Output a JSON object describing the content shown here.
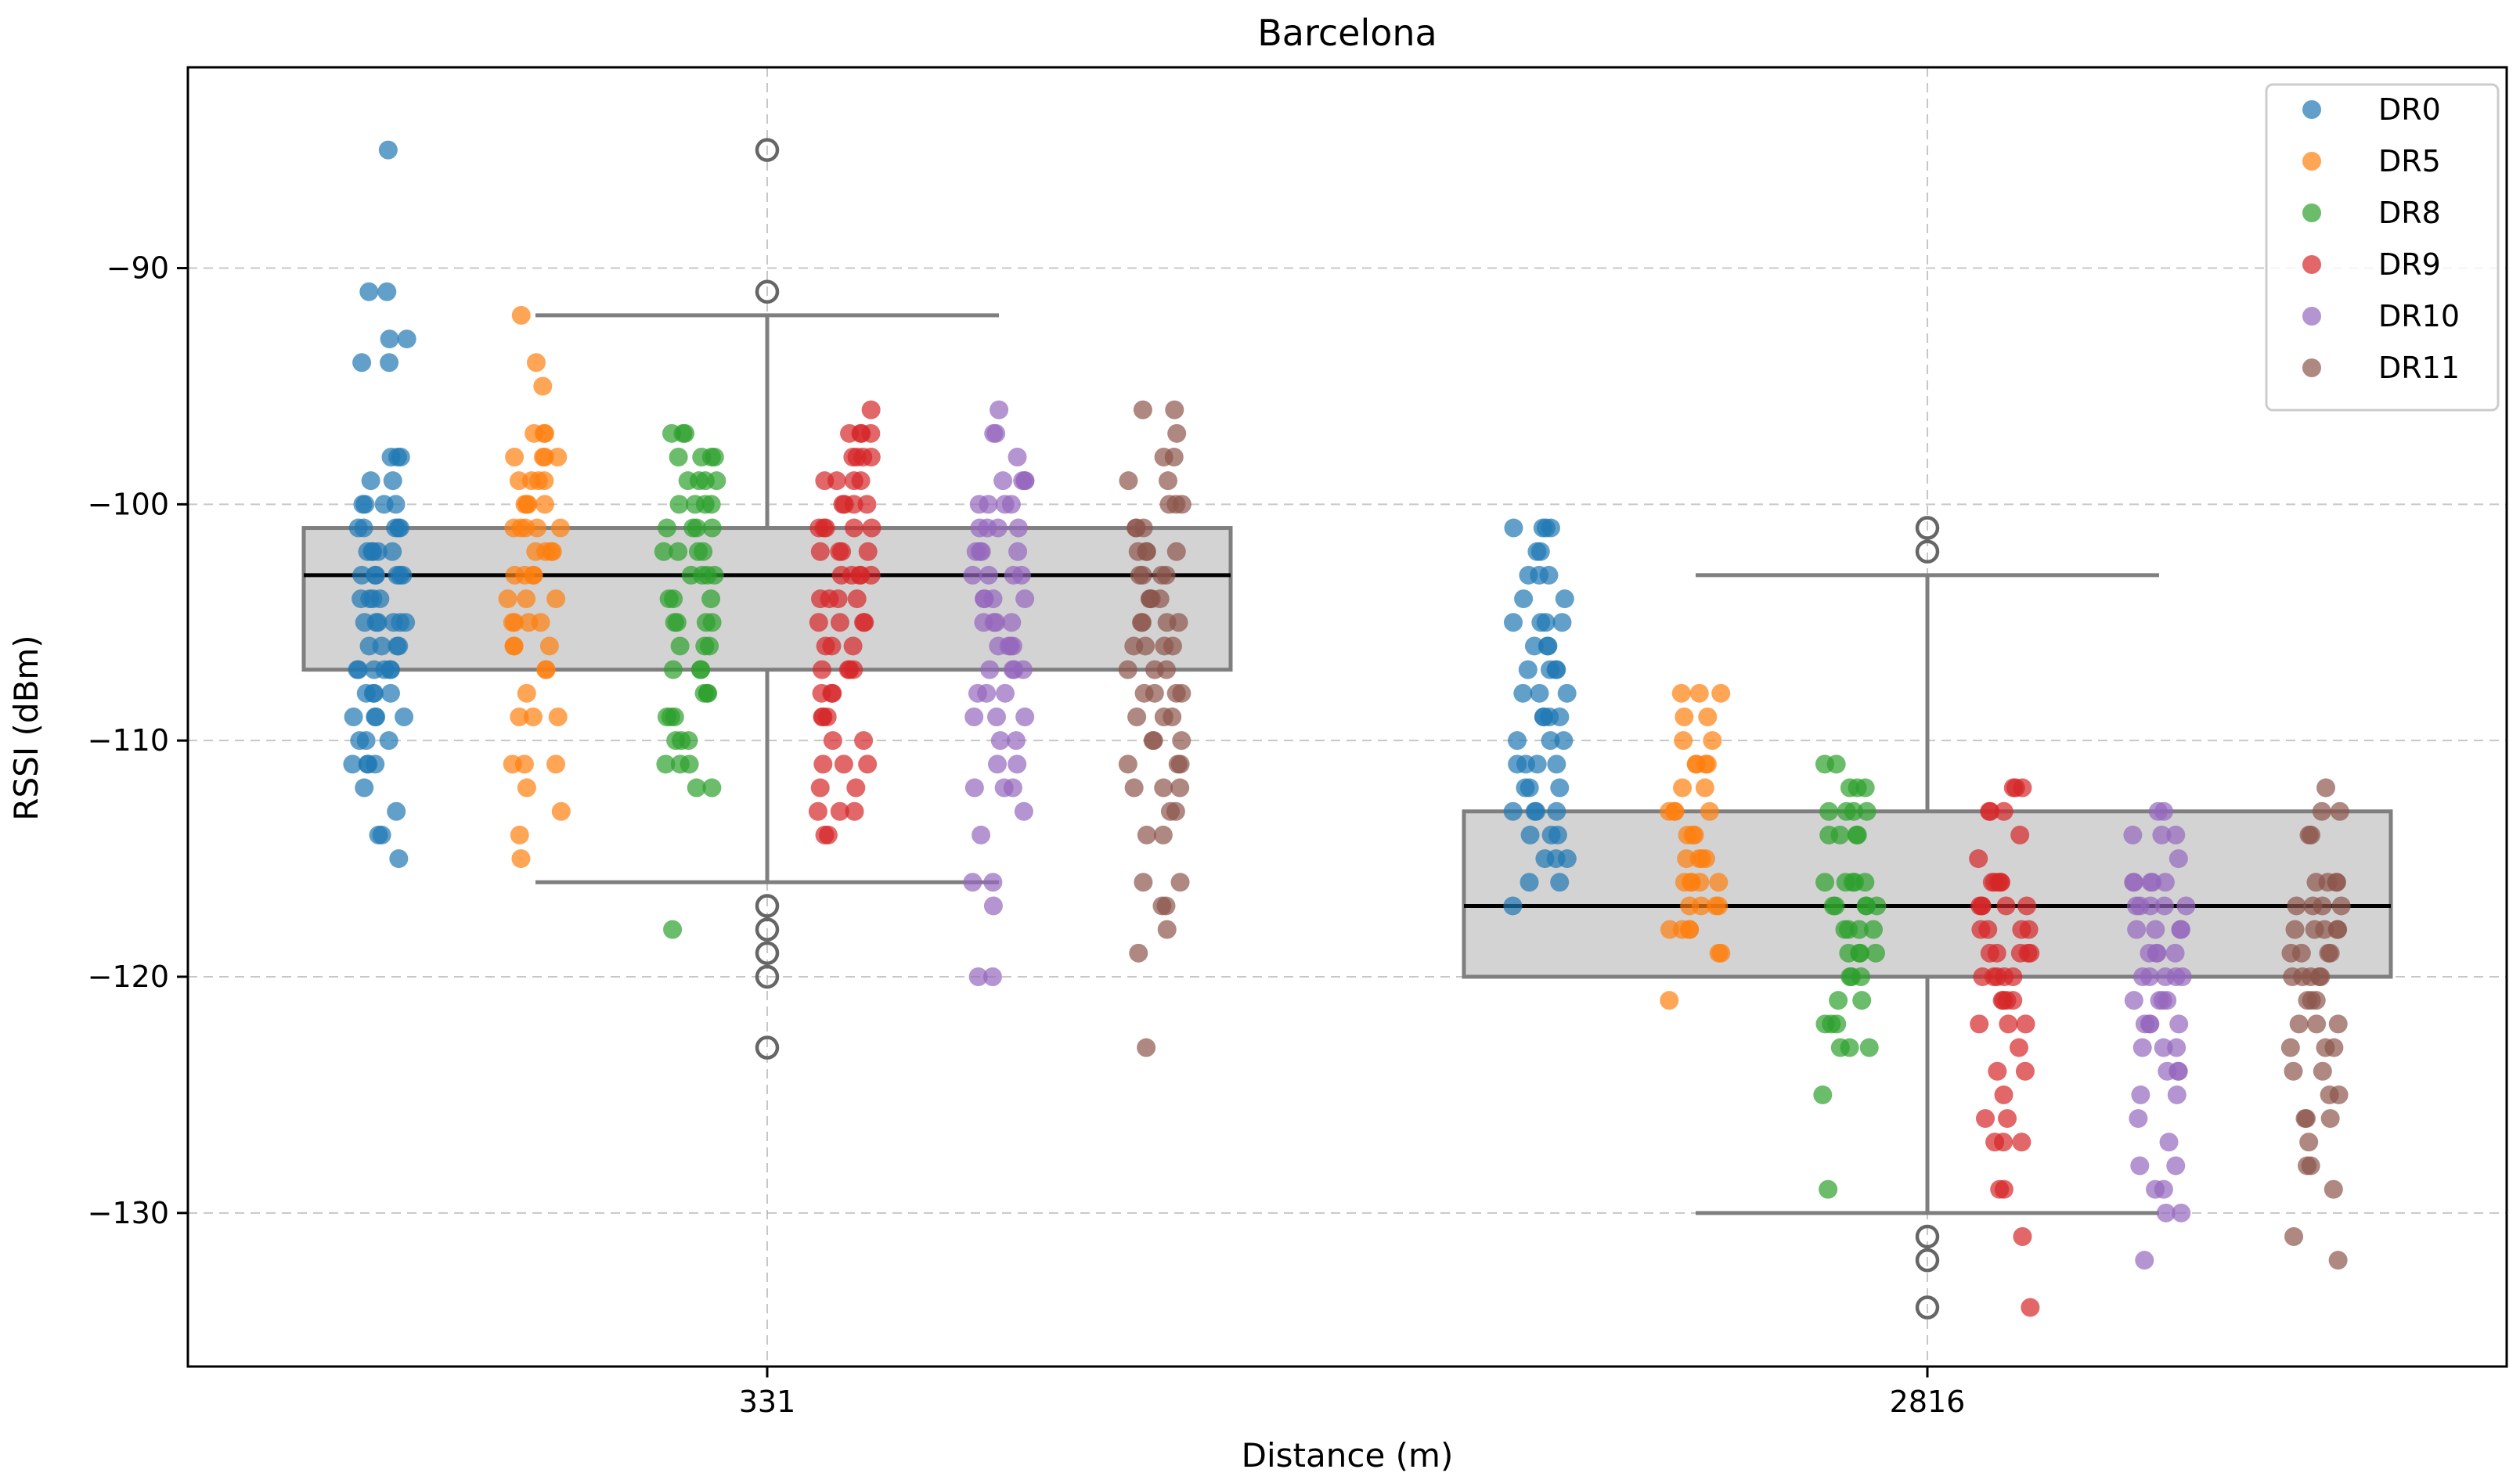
{
  "chart_data": {
    "type": "scatter",
    "title": "Barcelona",
    "xlabel": "Distance (m)",
    "ylabel": "RSSI (dBm)",
    "ylim": [
      -136.5,
      -81.5
    ],
    "yticks": [
      -90,
      -100,
      -110,
      -120,
      -130
    ],
    "ytick_labels": [
      "−90",
      "−100",
      "−110",
      "−120",
      "−130"
    ],
    "categories": [
      "331",
      "2816"
    ],
    "grid": true,
    "legend_position": "top-right",
    "boxplots": [
      {
        "category": "331",
        "q1": -107,
        "median": -103,
        "q3": -101,
        "whisker_low": -116,
        "whisker_high": -92,
        "outliers": [
          -85,
          -91,
          -117,
          -118,
          -119,
          -120,
          -123
        ]
      },
      {
        "category": "2816",
        "q1": -120,
        "median": -117,
        "q3": -113,
        "whisker_low": -130,
        "whisker_high": -103,
        "outliers": [
          -101,
          -102,
          -131,
          -132,
          -134
        ]
      }
    ],
    "series": [
      {
        "name": "DR0",
        "color": "#1f77b4",
        "values_by_category": [
          [
            -85,
            -91,
            -91,
            -93,
            -93,
            -94,
            -94,
            -98,
            -98,
            -98,
            -99,
            -99,
            -100,
            -100,
            -100,
            -100,
            -101,
            -101,
            -101,
            -101,
            -101,
            -102,
            -102,
            -102,
            -102,
            -102,
            -103,
            -103,
            -103,
            -103,
            -103,
            -103,
            -104,
            -104,
            -104,
            -104,
            -105,
            -105,
            -105,
            -105,
            -105,
            -105,
            -106,
            -106,
            -106,
            -106,
            -107,
            -107,
            -107,
            -107,
            -107,
            -107,
            -108,
            -108,
            -108,
            -108,
            -109,
            -109,
            -109,
            -109,
            -110,
            -110,
            -110,
            -111,
            -111,
            -111,
            -111,
            -112,
            -113,
            -114,
            -114,
            -115
          ],
          [
            -101,
            -101,
            -101,
            -101,
            -102,
            -102,
            -103,
            -103,
            -103,
            -104,
            -104,
            -105,
            -105,
            -105,
            -105,
            -106,
            -106,
            -106,
            -107,
            -107,
            -107,
            -107,
            -108,
            -108,
            -108,
            -109,
            -109,
            -109,
            -109,
            -110,
            -110,
            -110,
            -111,
            -111,
            -111,
            -111,
            -112,
            -112,
            -112,
            -113,
            -113,
            -113,
            -113,
            -114,
            -114,
            -114,
            -115,
            -115,
            -115,
            -116,
            -116,
            -117
          ]
        ]
      },
      {
        "name": "DR5",
        "color": "#ff7f0e",
        "values_by_category": [
          [
            -92,
            -94,
            -95,
            -97,
            -97,
            -97,
            -98,
            -98,
            -98,
            -98,
            -99,
            -99,
            -99,
            -99,
            -100,
            -100,
            -100,
            -100,
            -101,
            -101,
            -101,
            -101,
            -101,
            -102,
            -102,
            -102,
            -102,
            -103,
            -103,
            -103,
            -103,
            -104,
            -104,
            -104,
            -105,
            -105,
            -105,
            -105,
            -106,
            -106,
            -106,
            -107,
            -107,
            -108,
            -109,
            -109,
            -109,
            -111,
            -111,
            -111,
            -112,
            -113,
            -114,
            -115
          ],
          [
            -108,
            -108,
            -108,
            -109,
            -109,
            -110,
            -110,
            -111,
            -111,
            -111,
            -111,
            -112,
            -112,
            -113,
            -113,
            -113,
            -113,
            -114,
            -114,
            -114,
            -115,
            -115,
            -115,
            -115,
            -116,
            -116,
            -116,
            -116,
            -116,
            -117,
            -117,
            -117,
            -117,
            -118,
            -118,
            -118,
            -118,
            -119,
            -119,
            -121
          ]
        ]
      },
      {
        "name": "DR8",
        "color": "#2ca02c",
        "values_by_category": [
          [
            -97,
            -97,
            -97,
            -98,
            -98,
            -98,
            -98,
            -99,
            -99,
            -99,
            -99,
            -100,
            -100,
            -100,
            -100,
            -101,
            -101,
            -101,
            -101,
            -102,
            -102,
            -102,
            -102,
            -103,
            -103,
            -103,
            -103,
            -104,
            -104,
            -104,
            -105,
            -105,
            -105,
            -105,
            -106,
            -106,
            -106,
            -107,
            -107,
            -107,
            -108,
            -108,
            -108,
            -109,
            -109,
            -109,
            -110,
            -110,
            -110,
            -111,
            -111,
            -111,
            -112,
            -112,
            -118
          ],
          [
            -111,
            -111,
            -112,
            -112,
            -112,
            -113,
            -113,
            -113,
            -113,
            -114,
            -114,
            -114,
            -114,
            -116,
            -116,
            -116,
            -116,
            -116,
            -117,
            -117,
            -117,
            -117,
            -117,
            -118,
            -118,
            -118,
            -118,
            -119,
            -119,
            -119,
            -119,
            -120,
            -120,
            -120,
            -121,
            -121,
            -122,
            -122,
            -122,
            -123,
            -123,
            -123,
            -125,
            -129
          ]
        ]
      },
      {
        "name": "DR9",
        "color": "#d62728",
        "values_by_category": [
          [
            -96,
            -97,
            -97,
            -97,
            -97,
            -98,
            -98,
            -98,
            -98,
            -99,
            -99,
            -99,
            -99,
            -100,
            -100,
            -100,
            -100,
            -101,
            -101,
            -101,
            -101,
            -101,
            -102,
            -102,
            -102,
            -102,
            -103,
            -103,
            -103,
            -103,
            -103,
            -104,
            -104,
            -104,
            -104,
            -105,
            -105,
            -105,
            -105,
            -106,
            -106,
            -106,
            -107,
            -107,
            -107,
            -107,
            -108,
            -108,
            -108,
            -109,
            -109,
            -109,
            -110,
            -110,
            -111,
            -111,
            -111,
            -112,
            -112,
            -113,
            -113,
            -113,
            -114,
            -114
          ],
          [
            -112,
            -112,
            -112,
            -113,
            -113,
            -113,
            -114,
            -115,
            -116,
            -116,
            -116,
            -116,
            -116,
            -117,
            -117,
            -117,
            -117,
            -117,
            -118,
            -118,
            -118,
            -118,
            -119,
            -119,
            -119,
            -119,
            -119,
            -120,
            -120,
            -120,
            -120,
            -120,
            -121,
            -121,
            -121,
            -121,
            -122,
            -122,
            -122,
            -123,
            -124,
            -124,
            -125,
            -126,
            -126,
            -127,
            -127,
            -127,
            -129,
            -129,
            -131,
            -134
          ]
        ]
      },
      {
        "name": "DR10",
        "color": "#9467bd",
        "values_by_category": [
          [
            -96,
            -97,
            -97,
            -98,
            -99,
            -99,
            -99,
            -99,
            -100,
            -100,
            -100,
            -100,
            -101,
            -101,
            -101,
            -101,
            -102,
            -102,
            -102,
            -102,
            -103,
            -103,
            -103,
            -103,
            -104,
            -104,
            -104,
            -104,
            -105,
            -105,
            -105,
            -105,
            -106,
            -106,
            -106,
            -106,
            -107,
            -107,
            -107,
            -107,
            -108,
            -108,
            -108,
            -109,
            -109,
            -109,
            -110,
            -110,
            -111,
            -111,
            -112,
            -112,
            -112,
            -113,
            -114,
            -116,
            -116,
            -117,
            -120,
            -120
          ],
          [
            -113,
            -113,
            -114,
            -114,
            -114,
            -115,
            -116,
            -116,
            -116,
            -116,
            -116,
            -117,
            -117,
            -117,
            -117,
            -117,
            -118,
            -118,
            -118,
            -118,
            -119,
            -119,
            -119,
            -119,
            -120,
            -120,
            -120,
            -120,
            -120,
            -121,
            -121,
            -121,
            -121,
            -122,
            -122,
            -122,
            -122,
            -123,
            -123,
            -123,
            -124,
            -124,
            -124,
            -125,
            -125,
            -126,
            -127,
            -128,
            -128,
            -129,
            -129,
            -130,
            -130,
            -132
          ]
        ]
      },
      {
        "name": "DR11",
        "color": "#8c564b",
        "values_by_category": [
          [
            -96,
            -96,
            -97,
            -98,
            -98,
            -99,
            -99,
            -100,
            -100,
            -100,
            -101,
            -101,
            -101,
            -102,
            -102,
            -102,
            -102,
            -103,
            -103,
            -103,
            -103,
            -104,
            -104,
            -104,
            -104,
            -105,
            -105,
            -105,
            -105,
            -106,
            -106,
            -106,
            -106,
            -107,
            -107,
            -107,
            -108,
            -108,
            -108,
            -108,
            -109,
            -109,
            -109,
            -110,
            -110,
            -110,
            -111,
            -111,
            -111,
            -112,
            -112,
            -112,
            -113,
            -113,
            -114,
            -114,
            -116,
            -116,
            -117,
            -117,
            -118,
            -119,
            -123
          ],
          [
            -112,
            -113,
            -113,
            -114,
            -114,
            -116,
            -116,
            -116,
            -116,
            -117,
            -117,
            -117,
            -117,
            -118,
            -118,
            -118,
            -118,
            -118,
            -119,
            -119,
            -119,
            -119,
            -120,
            -120,
            -120,
            -120,
            -120,
            -121,
            -121,
            -121,
            -122,
            -122,
            -122,
            -123,
            -123,
            -123,
            -124,
            -124,
            -125,
            -125,
            -126,
            -126,
            -126,
            -127,
            -128,
            -128,
            -129,
            -131,
            -132
          ]
        ]
      }
    ]
  }
}
